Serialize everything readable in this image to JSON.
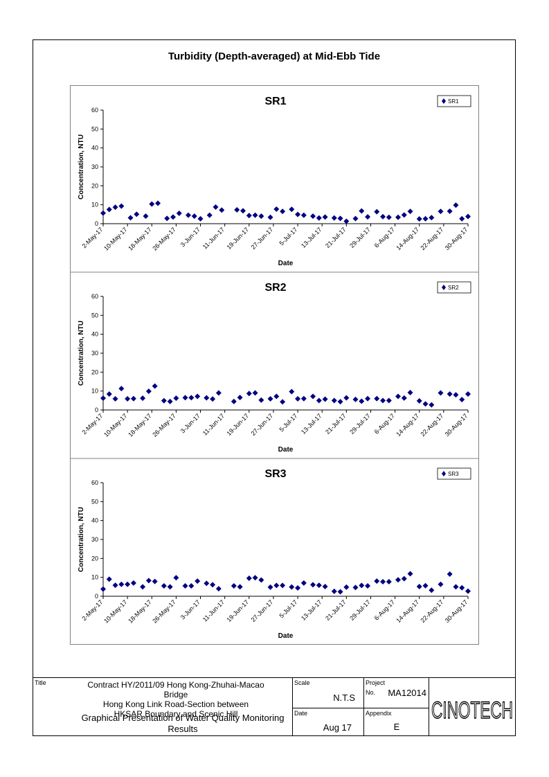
{
  "page_title": "Turbidity (Depth-averaged) at Mid-Ebb Tide",
  "chart_data": [
    {
      "type": "scatter",
      "title": "SR1",
      "xlabel": "Date",
      "ylabel": "Concentration, NTU",
      "ylim": [
        0,
        60
      ],
      "yticks": [
        0,
        10,
        20,
        30,
        40,
        50,
        60
      ],
      "xticks": [
        "2-May-17",
        "10-May-17",
        "18-May-17",
        "26-May-17",
        "3-Jun-17",
        "11-Jun-17",
        "19-Jun-17",
        "27-Jun-17",
        "5-Jul-17",
        "13-Jul-17",
        "21-Jul-17",
        "29-Jul-17",
        "6-Aug-17",
        "14-Aug-17",
        "22-Aug-17",
        "30-Aug-17"
      ],
      "legend": "top-right",
      "color": "#000080",
      "series": [
        {
          "name": "SR1",
          "x": [
            "2-May-17",
            "3-May-17",
            "4-May-17",
            "5-May-17",
            "6-May-17",
            "7-May-17",
            "8-May-17",
            "9-May-17",
            "10-May-17",
            "11-May-17",
            "12-May-17",
            "13-May-17",
            "14-May-17",
            "15-May-17",
            "16-May-17",
            "17-May-17",
            "18-May-17",
            "19-May-17",
            "20-May-17",
            "21-May-17",
            "22-May-17",
            "23-May-17",
            "24-May-17",
            "25-May-17",
            "26-May-17",
            "27-May-17",
            "28-May-17",
            "29-May-17",
            "30-May-17",
            "31-May-17",
            "1-Jun-17",
            "2-Jun-17",
            "3-Jun-17",
            "4-Jun-17",
            "5-Jun-17",
            "6-Jun-17",
            "7-Jun-17",
            "8-Jun-17",
            "9-Jun-17",
            "10-Jun-17",
            "11-Jun-17",
            "12-Jun-17",
            "13-Jun-17",
            "14-Jun-17",
            "15-Jun-17",
            "16-Jun-17",
            "17-Jun-17",
            "18-Jun-17",
            "19-Jun-17",
            "20-Jun-17",
            "21-Jun-17",
            "22-Jun-17",
            "23-Jun-17",
            "24-Jun-17",
            "25-Jun-17",
            "26-Jun-17",
            "27-Jun-17",
            "28-Jun-17",
            "29-Jun-17",
            "30-Jun-17",
            "1-Jul-17",
            "2-Jul-17",
            "3-Jul-17",
            "4-Jul-17",
            "5-Jul-17",
            "6-Jul-17",
            "7-Jul-17",
            "8-Jul-17",
            "9-Jul-17",
            "10-Jul-17",
            "11-Jul-17",
            "12-Jul-17",
            "13-Jul-17",
            "14-Jul-17",
            "15-Jul-17",
            "16-Jul-17",
            "17-Jul-17",
            "18-Jul-17",
            "19-Jul-17",
            "20-Jul-17",
            "21-Jul-17",
            "22-Jul-17",
            "23-Jul-17",
            "24-Jul-17",
            "25-Jul-17",
            "26-Jul-17",
            "27-Jul-17",
            "28-Jul-17",
            "29-Jul-17",
            "30-Jul-17",
            "31-Jul-17",
            "1-Aug-17",
            "2-Aug-17",
            "3-Aug-17",
            "4-Aug-17",
            "5-Aug-17",
            "6-Aug-17",
            "7-Aug-17",
            "8-Aug-17",
            "9-Aug-17",
            "10-Aug-17",
            "11-Aug-17",
            "12-Aug-17",
            "13-Aug-17",
            "14-Aug-17",
            "15-Aug-17",
            "16-Aug-17",
            "17-Aug-17",
            "18-Aug-17",
            "19-Aug-17",
            "20-Aug-17",
            "21-Aug-17",
            "22-Aug-17",
            "23-Aug-17",
            "24-Aug-17",
            "25-Aug-17",
            "26-Aug-17",
            "27-Aug-17",
            "28-Aug-17",
            "29-Aug-17",
            "30-Aug-17"
          ],
          "points": [
            [
              "2-May-17",
              5.6
            ],
            [
              "4-May-17",
              7.5
            ],
            [
              "6-May-17",
              8.7
            ],
            [
              "8-May-17",
              9.3
            ],
            [
              "11-May-17",
              3.1
            ],
            [
              "13-May-17",
              5.0
            ],
            [
              "16-May-17",
              4.0
            ],
            [
              "18-May-17",
              10.4
            ],
            [
              "20-May-17",
              10.8
            ],
            [
              "23-May-17",
              2.8
            ],
            [
              "25-May-17",
              3.5
            ],
            [
              "27-May-17",
              5.5
            ],
            [
              "30-May-17",
              4.5
            ],
            [
              "1-Jun-17",
              4.0
            ],
            [
              "3-Jun-17",
              2.6
            ],
            [
              "6-Jun-17",
              4.5
            ],
            [
              "8-Jun-17",
              8.8
            ],
            [
              "10-Jun-17",
              7.2
            ],
            [
              "15-Jun-17",
              7.3
            ],
            [
              "17-Jun-17",
              6.8
            ],
            [
              "19-Jun-17",
              4.3
            ],
            [
              "21-Jun-17",
              4.5
            ],
            [
              "23-Jun-17",
              4.0
            ],
            [
              "26-Jun-17",
              3.4
            ],
            [
              "28-Jun-17",
              7.7
            ],
            [
              "30-Jun-17",
              6.5
            ],
            [
              "3-Jul-17",
              7.6
            ],
            [
              "5-Jul-17",
              4.9
            ],
            [
              "7-Jul-17",
              4.5
            ],
            [
              "10-Jul-17",
              4.0
            ],
            [
              "12-Jul-17",
              3.0
            ],
            [
              "14-Jul-17",
              3.5
            ],
            [
              "17-Jul-17",
              3.0
            ],
            [
              "19-Jul-17",
              2.8
            ],
            [
              "21-Jul-17",
              1.3
            ],
            [
              "24-Jul-17",
              2.7
            ],
            [
              "26-Jul-17",
              6.7
            ],
            [
              "28-Jul-17",
              3.6
            ],
            [
              "31-Jul-17",
              6.3
            ],
            [
              "2-Aug-17",
              3.7
            ],
            [
              "4-Aug-17",
              3.4
            ],
            [
              "7-Aug-17",
              3.4
            ],
            [
              "9-Aug-17",
              4.6
            ],
            [
              "11-Aug-17",
              6.5
            ],
            [
              "14-Aug-17",
              2.5
            ],
            [
              "16-Aug-17",
              2.6
            ],
            [
              "18-Aug-17",
              3.2
            ],
            [
              "21-Aug-17",
              6.5
            ],
            [
              "24-Aug-17",
              6.6
            ],
            [
              "26-Aug-17",
              9.8
            ],
            [
              "28-Aug-17",
              2.6
            ],
            [
              "30-Aug-17",
              3.8
            ]
          ]
        }
      ]
    },
    {
      "type": "scatter",
      "title": "SR2",
      "xlabel": "Date",
      "ylabel": "Concentration, NTU",
      "ylim": [
        0,
        60
      ],
      "yticks": [
        0,
        10,
        20,
        30,
        40,
        50,
        60
      ],
      "xticks": [
        "2-May-17",
        "10-May-17",
        "18-May-17",
        "26-May-17",
        "3-Jun-17",
        "11-Jun-17",
        "19-Jun-17",
        "27-Jun-17",
        "5-Jul-17",
        "13-Jul-17",
        "21-Jul-17",
        "29-Jul-17",
        "6-Aug-17",
        "14-Aug-17",
        "22-Aug-17",
        "30-Aug-17"
      ],
      "legend": "top-right",
      "color": "#000080",
      "series": [
        {
          "name": "SR2",
          "points": [
            [
              "2-May-17",
              6.2
            ],
            [
              "4-May-17",
              8.4
            ],
            [
              "6-May-17",
              5.9
            ],
            [
              "8-May-17",
              11.3
            ],
            [
              "10-May-17",
              5.9
            ],
            [
              "12-May-17",
              6.0
            ],
            [
              "15-May-17",
              6.2
            ],
            [
              "17-May-17",
              9.9
            ],
            [
              "19-May-17",
              12.6
            ],
            [
              "22-May-17",
              4.9
            ],
            [
              "24-May-17",
              4.5
            ],
            [
              "26-May-17",
              6.2
            ],
            [
              "29-May-17",
              6.5
            ],
            [
              "31-May-17",
              6.5
            ],
            [
              "2-Jun-17",
              7.2
            ],
            [
              "5-Jun-17",
              6.4
            ],
            [
              "7-Jun-17",
              5.8
            ],
            [
              "9-Jun-17",
              9.0
            ],
            [
              "14-Jun-17",
              4.5
            ],
            [
              "16-Jun-17",
              6.6
            ],
            [
              "19-Jun-17",
              8.7
            ],
            [
              "21-Jun-17",
              9.0
            ],
            [
              "23-Jun-17",
              5.2
            ],
            [
              "26-Jun-17",
              5.9
            ],
            [
              "28-Jun-17",
              7.2
            ],
            [
              "30-Jun-17",
              4.3
            ],
            [
              "3-Jul-17",
              9.7
            ],
            [
              "5-Jul-17",
              5.9
            ],
            [
              "7-Jul-17",
              6.0
            ],
            [
              "10-Jul-17",
              7.2
            ],
            [
              "12-Jul-17",
              5.0
            ],
            [
              "14-Jul-17",
              5.7
            ],
            [
              "17-Jul-17",
              5.0
            ],
            [
              "19-Jul-17",
              4.4
            ],
            [
              "21-Jul-17",
              6.4
            ],
            [
              "24-Jul-17",
              5.6
            ],
            [
              "26-Jul-17",
              4.6
            ],
            [
              "28-Jul-17",
              6.0
            ],
            [
              "31-Jul-17",
              6.0
            ],
            [
              "2-Aug-17",
              5.0
            ],
            [
              "4-Aug-17",
              5.0
            ],
            [
              "7-Aug-17",
              7.2
            ],
            [
              "9-Aug-17",
              6.3
            ],
            [
              "11-Aug-17",
              9.2
            ],
            [
              "14-Aug-17",
              4.8
            ],
            [
              "16-Aug-17",
              3.2
            ],
            [
              "18-Aug-17",
              2.7
            ],
            [
              "21-Aug-17",
              9.0
            ],
            [
              "24-Aug-17",
              8.4
            ],
            [
              "26-Aug-17",
              8.0
            ],
            [
              "28-Aug-17",
              5.5
            ],
            [
              "30-Aug-17",
              8.4
            ]
          ]
        }
      ]
    },
    {
      "type": "scatter",
      "title": "SR3",
      "xlabel": "Date",
      "ylabel": "Concentration, NTU",
      "ylim": [
        0,
        60
      ],
      "yticks": [
        0,
        10,
        20,
        30,
        40,
        50,
        60
      ],
      "xticks": [
        "2-May-17",
        "10-May-17",
        "18-May-17",
        "26-May-17",
        "3-Jun-17",
        "11-Jun-17",
        "19-Jun-17",
        "27-Jun-17",
        "5-Jul-17",
        "13-Jul-17",
        "21-Jul-17",
        "29-Jul-17",
        "6-Aug-17",
        "14-Aug-17",
        "22-Aug-17",
        "30-Aug-17"
      ],
      "legend": "top-right",
      "color": "#000080",
      "series": [
        {
          "name": "SR3",
          "points": [
            [
              "2-May-17",
              3.8
            ],
            [
              "4-May-17",
              9.0
            ],
            [
              "6-May-17",
              5.8
            ],
            [
              "8-May-17",
              6.3
            ],
            [
              "10-May-17",
              6.3
            ],
            [
              "12-May-17",
              7.0
            ],
            [
              "15-May-17",
              5.0
            ],
            [
              "17-May-17",
              8.3
            ],
            [
              "19-May-17",
              7.8
            ],
            [
              "22-May-17",
              5.5
            ],
            [
              "24-May-17",
              5.0
            ],
            [
              "26-May-17",
              9.8
            ],
            [
              "29-May-17",
              5.5
            ],
            [
              "31-May-17",
              5.5
            ],
            [
              "2-Jun-17",
              8.0
            ],
            [
              "5-Jun-17",
              6.8
            ],
            [
              "7-Jun-17",
              6.1
            ],
            [
              "9-Jun-17",
              4.0
            ],
            [
              "14-Jun-17",
              5.5
            ],
            [
              "16-Jun-17",
              5.0
            ],
            [
              "19-Jun-17",
              9.5
            ],
            [
              "21-Jun-17",
              9.8
            ],
            [
              "23-Jun-17",
              8.6
            ],
            [
              "26-Jun-17",
              4.8
            ],
            [
              "28-Jun-17",
              5.7
            ],
            [
              "30-Jun-17",
              5.7
            ],
            [
              "3-Jul-17",
              4.9
            ],
            [
              "5-Jul-17",
              4.4
            ],
            [
              "7-Jul-17",
              7.0
            ],
            [
              "10-Jul-17",
              6.1
            ],
            [
              "12-Jul-17",
              5.8
            ],
            [
              "14-Jul-17",
              5.1
            ],
            [
              "17-Jul-17",
              2.6
            ],
            [
              "19-Jul-17",
              2.4
            ],
            [
              "21-Jul-17",
              4.8
            ],
            [
              "24-Jul-17",
              4.6
            ],
            [
              "26-Jul-17",
              5.7
            ],
            [
              "28-Jul-17",
              5.5
            ],
            [
              "31-Jul-17",
              8.0
            ],
            [
              "2-Aug-17",
              7.7
            ],
            [
              "4-Aug-17",
              7.7
            ],
            [
              "7-Aug-17",
              8.7
            ],
            [
              "9-Aug-17",
              9.3
            ],
            [
              "11-Aug-17",
              11.9
            ],
            [
              "14-Aug-17",
              5.1
            ],
            [
              "16-Aug-17",
              5.6
            ],
            [
              "18-Aug-17",
              3.2
            ],
            [
              "21-Aug-17",
              6.3
            ],
            [
              "24-Aug-17",
              11.7
            ],
            [
              "26-Aug-17",
              5.0
            ],
            [
              "28-Aug-17",
              4.5
            ],
            [
              "30-Aug-17",
              2.7
            ]
          ]
        }
      ]
    }
  ],
  "title_block": {
    "title_label": "Title",
    "title_lines": [
      "Contract HY/2011/09 Hong Kong-Zhuhai-Macao Bridge",
      "Hong Kong Link Road-Section between",
      "HKSAR Boundary and Scenic Hill"
    ],
    "subtitle_lines": [
      "Graphical Presentation of Water Quality Monitoring",
      "Results"
    ],
    "scale_label": "Scale",
    "scale_value": "N.T.S",
    "date_label": "Date",
    "date_value": "Aug 17",
    "project_label": "Project",
    "project_no_label": "No.",
    "project_value": "MA12014",
    "appendix_label": "Appendix",
    "appendix_value": "E",
    "logo_text": "CINOTECH"
  }
}
